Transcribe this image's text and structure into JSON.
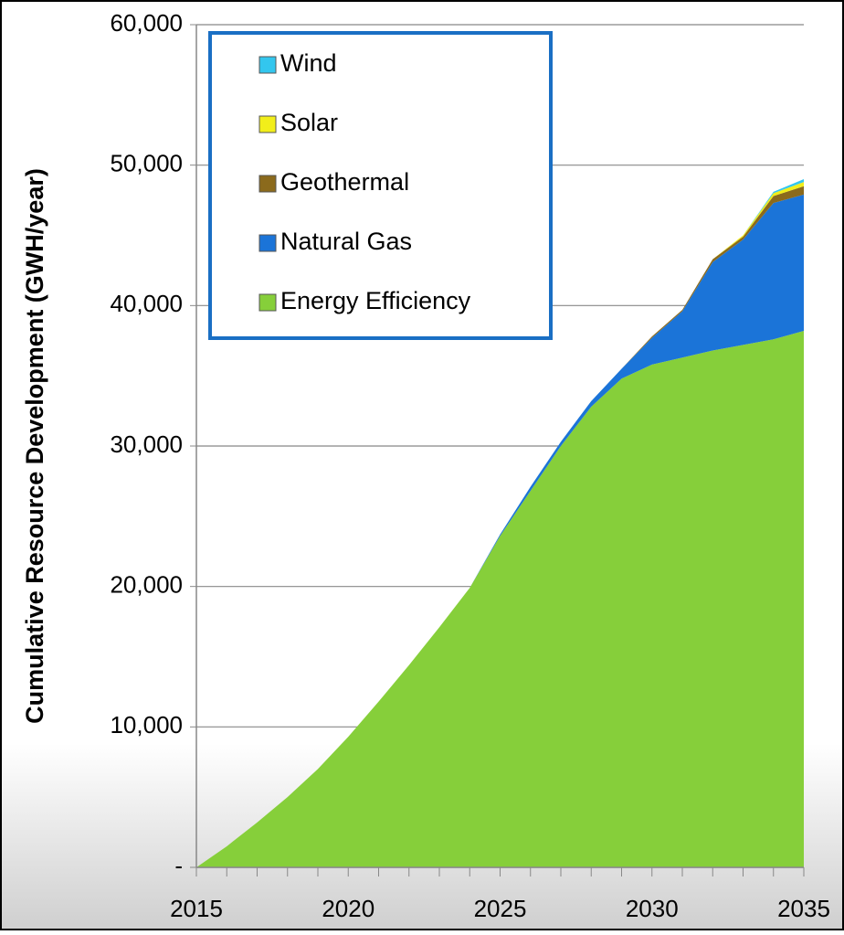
{
  "chart_data": {
    "type": "stacked_area",
    "y_label": "Cumulative Resource Development  (GWH/year)",
    "x": [
      2015,
      2016,
      2017,
      2018,
      2019,
      2020,
      2021,
      2022,
      2023,
      2024,
      2025,
      2026,
      2027,
      2028,
      2029,
      2030,
      2031,
      2032,
      2033,
      2034,
      2035
    ],
    "xlim": [
      2015,
      2035
    ],
    "xticks": [
      2015,
      2020,
      2025,
      2030,
      2035
    ],
    "ylim": [
      0,
      60000
    ],
    "yticks": [
      {
        "value": 0,
        "label": "-"
      },
      {
        "value": 10000,
        "label": "10,000"
      },
      {
        "value": 20000,
        "label": "20,000"
      },
      {
        "value": 30000,
        "label": "30,000"
      },
      {
        "value": 40000,
        "label": "40,000"
      },
      {
        "value": 50000,
        "label": "50,000"
      },
      {
        "value": 60000,
        "label": "60,000"
      }
    ],
    "grid": true,
    "series": [
      {
        "name": "Wind",
        "color": "#33c6ee",
        "values": [
          0,
          0,
          0,
          0,
          0,
          0,
          0,
          0,
          0,
          0,
          0,
          0,
          0,
          0,
          0,
          0,
          0,
          0,
          0,
          100,
          200
        ]
      },
      {
        "name": "Solar",
        "color": "#f2ee1a",
        "values": [
          0,
          0,
          0,
          0,
          0,
          0,
          0,
          0,
          0,
          0,
          0,
          0,
          0,
          0,
          0,
          0,
          0,
          0,
          100,
          200,
          300
        ]
      },
      {
        "name": "Geothermal",
        "color": "#8b6a1c",
        "values": [
          0,
          0,
          0,
          0,
          0,
          0,
          0,
          0,
          0,
          0,
          0,
          0,
          0,
          0,
          0,
          100,
          100,
          200,
          200,
          500,
          600
        ]
      },
      {
        "name": "Natural Gas",
        "color": "#1b74d8",
        "values": [
          0,
          0,
          0,
          0,
          0,
          0,
          0,
          0,
          0,
          0,
          100,
          300,
          300,
          400,
          700,
          1900,
          3300,
          6300,
          7500,
          9700,
          9700
        ]
      },
      {
        "name": "Energy Efficiency",
        "color": "#86cf3a",
        "values": [
          0,
          1500,
          3200,
          5000,
          7000,
          9300,
          11800,
          14400,
          17100,
          19900,
          23600,
          26800,
          30000,
          32800,
          34800,
          35800,
          36300,
          36800,
          37200,
          37600,
          38200
        ]
      }
    ]
  }
}
